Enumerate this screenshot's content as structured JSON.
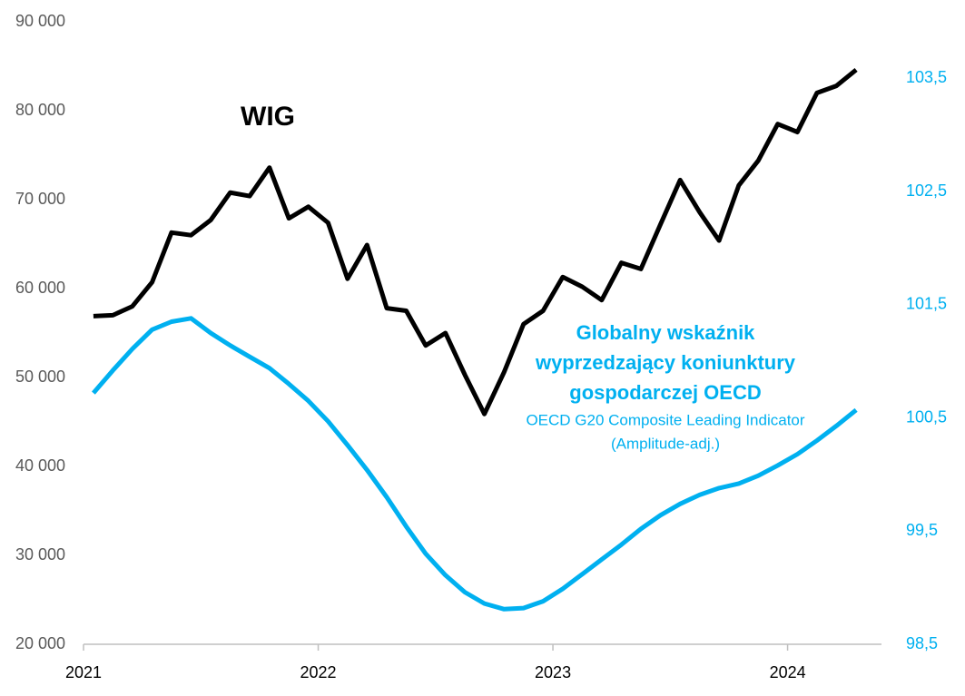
{
  "chart_data": {
    "type": "line",
    "x": [
      2021.042,
      2021.125,
      2021.208,
      2021.292,
      2021.375,
      2021.458,
      2021.542,
      2021.625,
      2021.708,
      2021.792,
      2021.875,
      2021.958,
      2022.042,
      2022.125,
      2022.208,
      2022.292,
      2022.375,
      2022.458,
      2022.542,
      2022.625,
      2022.708,
      2022.792,
      2022.875,
      2022.958,
      2023.042,
      2023.125,
      2023.208,
      2023.292,
      2023.375,
      2023.458,
      2023.542,
      2023.625,
      2023.708,
      2023.792,
      2023.875,
      2023.958,
      2024.042,
      2024.125,
      2024.208,
      2024.292
    ],
    "xlim": [
      2021,
      2024.4
    ],
    "xticks": [
      2021,
      2022,
      2023,
      2024
    ],
    "ylim": [
      20000,
      90000
    ],
    "yticks": [
      {
        "value": 20000,
        "label": "20 000"
      },
      {
        "value": 30000,
        "label": "30 000"
      },
      {
        "value": 40000,
        "label": "40 000"
      },
      {
        "value": 50000,
        "label": "50 000"
      },
      {
        "value": 60000,
        "label": "60 000"
      },
      {
        "value": 70000,
        "label": "70 000"
      },
      {
        "value": 80000,
        "label": "80 000"
      },
      {
        "value": 90000,
        "label": "90 000"
      }
    ],
    "y2lim": [
      98.5,
      104
    ],
    "y2ticks": [
      {
        "value": 98.5,
        "label": "98,5"
      },
      {
        "value": 99.5,
        "label": "99,5"
      },
      {
        "value": 100.5,
        "label": "100,5"
      },
      {
        "value": 101.5,
        "label": "101,5"
      },
      {
        "value": 102.5,
        "label": "102,5"
      },
      {
        "value": 103.5,
        "label": "103,5"
      }
    ],
    "grid": false,
    "series": [
      {
        "name": "WIG",
        "color": "#000000",
        "values": [
          56900,
          57000,
          58000,
          60700,
          66300,
          66000,
          67700,
          70800,
          70400,
          73600,
          67900,
          69200,
          67400,
          61100,
          64900,
          57800,
          57500,
          53600,
          55000,
          50300,
          45900,
          50600,
          56000,
          57500,
          61300,
          60200,
          58700,
          62900,
          62200,
          67200,
          72200,
          68600,
          65400,
          71600,
          74400,
          78500,
          77600,
          82000,
          82800,
          84600
        ]
      },
      {
        "color": "#00b0f0",
        "axis": "y2",
        "values": [
          100.72,
          100.92,
          101.11,
          101.28,
          101.35,
          101.38,
          101.25,
          101.14,
          101.04,
          100.94,
          100.8,
          100.65,
          100.47,
          100.26,
          100.04,
          99.8,
          99.54,
          99.3,
          99.11,
          98.96,
          98.86,
          98.81,
          98.82,
          98.88,
          98.99,
          99.12,
          99.25,
          99.38,
          99.52,
          99.64,
          99.74,
          99.82,
          99.88,
          99.92,
          99.99,
          100.08,
          100.18,
          100.3,
          100.43,
          100.57
        ],
        "annotations": [
          "Globalny wskaźnik",
          "wyprzedzający koniunktury",
          "gospodarczej OECD",
          "OECD G20 Composite Leading Indicator",
          "(Amplitude-adj.)"
        ]
      }
    ]
  }
}
